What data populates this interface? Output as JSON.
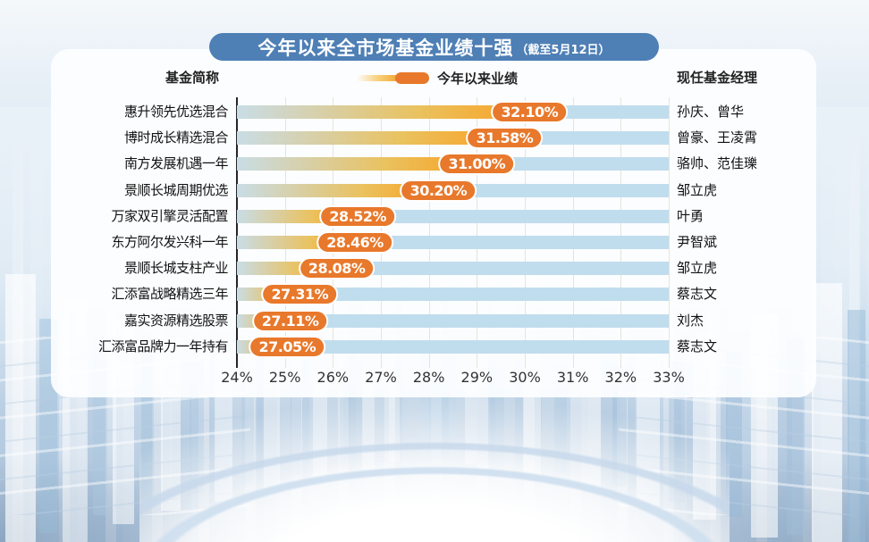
{
  "title": {
    "main": "今年以来全市场基金业绩十强",
    "note": "（截至5月12日）"
  },
  "columns": {
    "fund": "基金简称",
    "performance": "今年以来业绩",
    "manager": "现任基金经理"
  },
  "colors": {
    "banner_blue": "#4e7fb5",
    "pill_orange": "#e8782b",
    "track_blue": "#c0ddee",
    "bar_gradient": [
      "#c9dde6",
      "#d8cfa6",
      "#eac25f",
      "#f6a030"
    ],
    "axis_line": "#26262a",
    "grid_line": "#e6e4db"
  },
  "chart_data": {
    "type": "bar",
    "orientation": "horizontal",
    "title": "今年以来全市场基金业绩十强（截至5月12日）",
    "legend": "今年以来业绩",
    "categories": [
      "惠升领先优选混合",
      "博时成长精选混合",
      "南方发展机遇一年",
      "景顺长城周期优选",
      "万家双引擎灵活配置",
      "东方阿尔发兴科一年",
      "景顺长城支柱产业",
      "汇添富战略精选三年",
      "嘉实资源精选股票",
      "汇添富品牌力一年持有"
    ],
    "values": [
      32.1,
      31.58,
      31.0,
      30.2,
      28.52,
      28.46,
      28.08,
      27.31,
      27.11,
      27.05
    ],
    "value_labels": [
      "32.10%",
      "31.58%",
      "31.00%",
      "30.20%",
      "28.52%",
      "28.46%",
      "28.08%",
      "27.31%",
      "27.11%",
      "27.05%"
    ],
    "managers": [
      "孙庆、曾华",
      "曾豪、王凌霄",
      "骆帅、范佳瓅",
      "邹立虎",
      "叶勇",
      "尹智斌",
      "邹立虎",
      "蔡志文",
      "刘杰",
      "蔡志文"
    ],
    "xlabel": "",
    "ylabel": "",
    "xlim": [
      24,
      33
    ],
    "xticks": [
      "24%",
      "25%",
      "26%",
      "27%",
      "28%",
      "29%",
      "30%",
      "31%",
      "32%",
      "33%"
    ],
    "grid": true
  }
}
